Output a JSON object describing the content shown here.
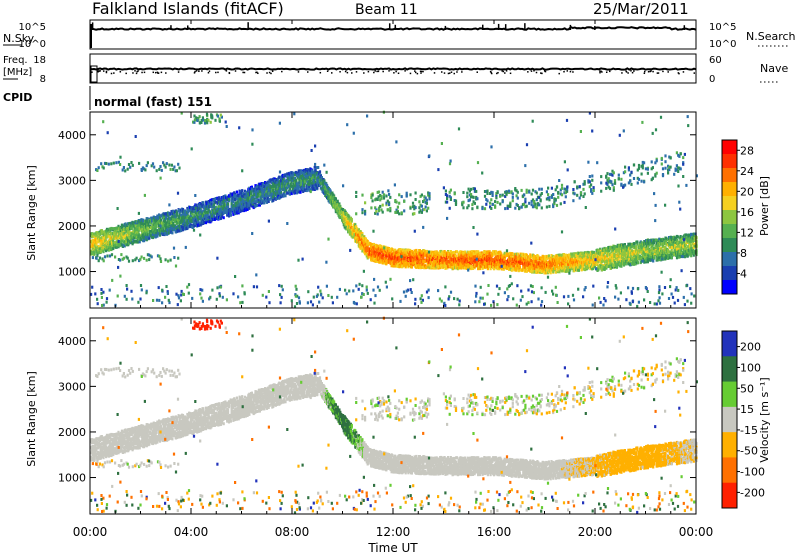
{
  "header": {
    "station": "Falkland Islands (fitACF)",
    "beam": "Beam 11",
    "date": "25/Mar/2011"
  },
  "left_labels": {
    "nsky": "N.Sky",
    "freq_line1": "Freq.",
    "freq_line2": "[MHz]",
    "cpid": "CPID"
  },
  "right_labels": {
    "nsearch": "N.Search",
    "nave": "Nave"
  },
  "cpid_text": "normal (fast) 151",
  "colors": {
    "power": [
      "#0000ff",
      "#1a3fb0",
      "#2c6faa",
      "#2e8b57",
      "#55b050",
      "#8dc640",
      "#f5d020",
      "#ffb000",
      "#ff7000",
      "#ff3000",
      "#ff0000"
    ],
    "velocity": [
      "#2233bb",
      "#2e7040",
      "#66cc33",
      "#c8c8c0",
      "#ffb000",
      "#ff7000",
      "#ff2000"
    ],
    "ground_scatter": "#c8c8c0"
  },
  "chart_data": [
    {
      "type": "line",
      "panel": "noise",
      "left_ticks": [
        "10^5",
        "10^0"
      ],
      "right_ticks": [
        "10^5",
        "10^0"
      ],
      "note_series": "N.Sky (solid), N.Search (dotted)",
      "x": [
        "00:00",
        "04:00",
        "08:00",
        "12:00",
        "16:00",
        "20:00",
        "00:00"
      ],
      "series": [
        {
          "name": "N.Sky",
          "values": [
            10000,
            12000,
            10000,
            11000,
            10000,
            12000,
            10000
          ]
        },
        {
          "name": "N.Search",
          "values": [
            10000,
            12000,
            10000,
            11000,
            10000,
            12000,
            10000
          ]
        }
      ]
    },
    {
      "type": "line",
      "panel": "frequency",
      "left_ticks": [
        "18",
        "8"
      ],
      "right_ticks": [
        "60",
        "0"
      ],
      "x": [
        "00:00",
        "04:00",
        "08:00",
        "12:00",
        "16:00",
        "20:00",
        "00:00"
      ],
      "series": [
        {
          "name": "Freq.",
          "values": [
            11.5,
            11.5,
            11.5,
            11.5,
            11.5,
            11.5,
            11.5
          ]
        },
        {
          "name": "Nave",
          "values": [
            28,
            28,
            28,
            28,
            28,
            28,
            28
          ]
        }
      ]
    },
    {
      "type": "heatmap",
      "panel": "power",
      "ylabel": "Slant Range [km]",
      "y_ticks": [
        1000,
        2000,
        3000,
        4000
      ],
      "ylim": [
        200,
        4500
      ],
      "colorbar_label": "Power [dB]",
      "colorbar_ticks": [
        "4",
        "8",
        "12",
        "16",
        "20",
        "24",
        "28"
      ],
      "colorbar_range": [
        0,
        30
      ],
      "x_hours": [
        0,
        2,
        4,
        6,
        8,
        9,
        10,
        11,
        12,
        14,
        16,
        18,
        20,
        22,
        24
      ],
      "band_center_km": [
        1600,
        1900,
        2200,
        2550,
        2950,
        3050,
        2200,
        1450,
        1300,
        1250,
        1250,
        1150,
        1250,
        1450,
        1600
      ],
      "band_power_db": [
        20,
        14,
        10,
        9,
        10,
        10,
        18,
        26,
        26,
        25,
        26,
        24,
        20,
        16,
        16
      ]
    },
    {
      "type": "heatmap",
      "panel": "velocity",
      "ylabel": "Slant Range [km]",
      "y_ticks": [
        1000,
        2000,
        3000,
        4000
      ],
      "ylim": [
        200,
        4500
      ],
      "colorbar_label": "Velocity [m s⁻¹]",
      "colorbar_ticks": [
        "200",
        "100",
        "50",
        "15",
        "-15",
        "-50",
        "-100",
        "-200"
      ],
      "x_hours": [
        0,
        2,
        4,
        6,
        8,
        9,
        10,
        11,
        12,
        14,
        16,
        18,
        20,
        22,
        24
      ],
      "band_center_km": [
        1600,
        1900,
        2200,
        2550,
        2950,
        3050,
        2200,
        1450,
        1300,
        1250,
        1250,
        1150,
        1250,
        1450,
        1600
      ],
      "band_velocity": [
        -5,
        0,
        0,
        0,
        0,
        0,
        40,
        -5,
        0,
        0,
        0,
        0,
        -20,
        -30,
        -10
      ]
    }
  ],
  "x_axis": {
    "ticks": [
      "00:00",
      "04:00",
      "08:00",
      "12:00",
      "16:00",
      "20:00",
      "00:00"
    ],
    "xlabel": "Time UT"
  }
}
